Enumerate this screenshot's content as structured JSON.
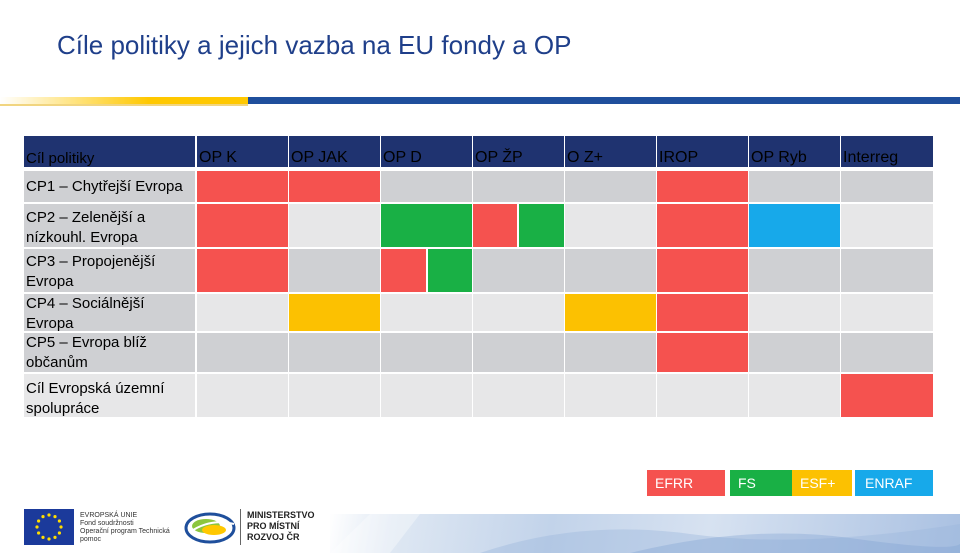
{
  "slide": {
    "title": "Cíle politiky a jejich vazba na EU fondy a OP"
  },
  "table": {
    "columns": [
      "Cíl politiky",
      "OP K",
      "OP JAK",
      "OP  D",
      "OP ŽP",
      "O Z+",
      "IROP",
      "OP Ryb",
      "Interreg"
    ],
    "rows": [
      {
        "label": "CP1 – Chytřejší Evropa"
      },
      {
        "label": "CP2 – Zelenější a nízkouhl. Evropa"
      },
      {
        "label": "CP3 – Propojenější Evropa"
      },
      {
        "label": "CP4 – Sociálnější Evropa"
      },
      {
        "label": "CP5 – Evropa blíž občanům"
      },
      {
        "label": "Cíl Evropská územní spolupráce"
      }
    ]
  },
  "legend": {
    "efrr": "EFRR",
    "fs": "FS",
    "esf": "ESF+",
    "enraf": "ENRAF"
  },
  "colors": {
    "efrr": "#f5524f",
    "fs": "#19b045",
    "esf": "#fcc101",
    "enraf": "#17a9ea",
    "header": "#1f3370",
    "title": "#1f3f8a"
  },
  "footer": {
    "eu_lines": [
      "EVROPSKÁ UNIE",
      "Fond soudržnosti",
      "Operační program Technická pomoc"
    ],
    "mmr_lines": [
      "MINISTERSTVO",
      "PRO MÍSTNÍ",
      "ROZVOJ ČR"
    ]
  }
}
